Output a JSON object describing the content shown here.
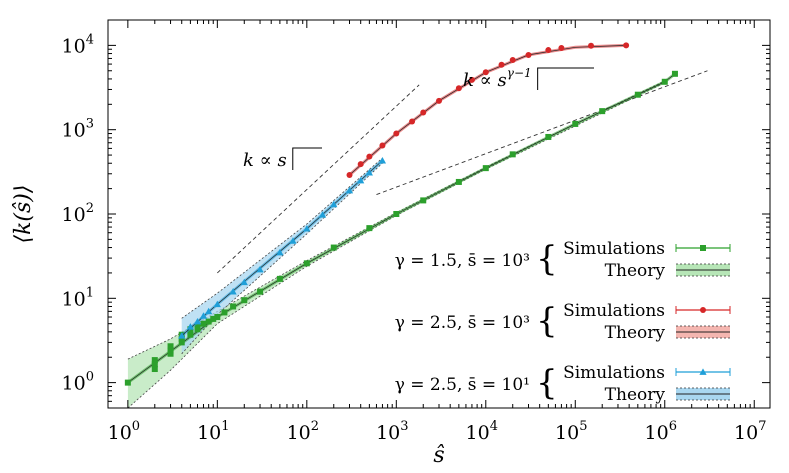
{
  "chart_data": {
    "type": "scatter",
    "title": "",
    "xlabel": "ŝ",
    "ylabel": "⟨k(ŝ)⟩",
    "x_scale": "log",
    "y_scale": "log",
    "xlim": [
      0.6,
      15000000
    ],
    "ylim": [
      0.5,
      20000
    ],
    "x_ticks": [
      {
        "value": 1,
        "base": "10",
        "exp": "0"
      },
      {
        "value": 10,
        "base": "10",
        "exp": "1"
      },
      {
        "value": 100,
        "base": "10",
        "exp": "2"
      },
      {
        "value": 1000,
        "base": "10",
        "exp": "3"
      },
      {
        "value": 10000,
        "base": "10",
        "exp": "4"
      },
      {
        "value": 100000,
        "base": "10",
        "exp": "5"
      },
      {
        "value": 1000000,
        "base": "10",
        "exp": "6"
      },
      {
        "value": 10000000,
        "base": "10",
        "exp": "7"
      }
    ],
    "y_ticks": [
      {
        "value": 1,
        "base": "10",
        "exp": "0"
      },
      {
        "value": 10,
        "base": "10",
        "exp": "1"
      },
      {
        "value": 100,
        "base": "10",
        "exp": "2"
      },
      {
        "value": 1000,
        "base": "10",
        "exp": "3"
      },
      {
        "value": 10000,
        "base": "10",
        "exp": "4"
      }
    ],
    "grid": false,
    "legend_position": "right",
    "annotations": [
      {
        "id": "annotation-linear",
        "text": "k ∝ s",
        "base": "k ∝ s",
        "sup": "",
        "x": [
          10,
          1800
        ],
        "y": [
          20,
          3400
        ]
      },
      {
        "id": "annotation-power",
        "text": "k ∝ s^(γ−1)",
        "base": "k ∝ s",
        "sup": "γ−1",
        "x": [
          600,
          3000000
        ],
        "y": [
          170,
          5000
        ]
      }
    ],
    "series": [
      {
        "id": "green",
        "color": "#2ca02c",
        "band_color": "#b7e6b7",
        "marker": "square",
        "group_label": "γ = 1.5, s̄ = 10³",
        "sim_label": "Simulations",
        "theory_label": "Theory",
        "points": [
          [
            1,
            1.0
          ],
          [
            2,
            1.45
          ],
          [
            2,
            1.65
          ],
          [
            2,
            1.85
          ],
          [
            3,
            2.2
          ],
          [
            3,
            2.4
          ],
          [
            3,
            2.7
          ],
          [
            4,
            3.0
          ],
          [
            4,
            3.3
          ],
          [
            4,
            3.7
          ],
          [
            5,
            3.7
          ],
          [
            5,
            4.0
          ],
          [
            5,
            4.3
          ],
          [
            6,
            4.3
          ],
          [
            6,
            4.6
          ],
          [
            7,
            5.0
          ],
          [
            8,
            5.3
          ],
          [
            9,
            5.7
          ],
          [
            10,
            6.0
          ],
          [
            12,
            6.8
          ],
          [
            15,
            8.0
          ],
          [
            20,
            9.5
          ],
          [
            30,
            12.0
          ],
          [
            50,
            17.0
          ],
          [
            100,
            26.0
          ],
          [
            200,
            40.0
          ],
          [
            500,
            68.0
          ],
          [
            1000,
            100.0
          ],
          [
            2000,
            145.0
          ],
          [
            5000,
            240.0
          ],
          [
            10000,
            350.0
          ],
          [
            20000,
            510.0
          ],
          [
            50000,
            820.0
          ],
          [
            100000,
            1170.0
          ],
          [
            200000,
            1660.0
          ],
          [
            500000,
            2600.0
          ],
          [
            1000000,
            3700.0
          ],
          [
            1300000,
            4600.0
          ]
        ],
        "theory": [
          [
            1,
            1.0
          ],
          [
            10,
            6.0
          ],
          [
            100,
            26.0
          ],
          [
            1000,
            100.0
          ],
          [
            10000,
            350.0
          ],
          [
            100000,
            1170.0
          ],
          [
            1000000,
            3700.0
          ],
          [
            1300000,
            4600.0
          ]
        ],
        "band_upper": [
          [
            1,
            1.9
          ],
          [
            3,
            3.3
          ],
          [
            10,
            7.0
          ],
          [
            100,
            28.0
          ],
          [
            1000,
            104.0
          ],
          [
            10000,
            360.0
          ],
          [
            1000000,
            3800.0
          ]
        ],
        "band_lower": [
          [
            1,
            0.5
          ],
          [
            3,
            1.4
          ],
          [
            10,
            5.0
          ],
          [
            100,
            24.0
          ],
          [
            1000,
            96.0
          ],
          [
            10000,
            340.0
          ],
          [
            1000000,
            3600.0
          ]
        ]
      },
      {
        "id": "red",
        "color": "#d62728",
        "band_color": "#f4b6b0",
        "marker": "circle",
        "group_label": "γ = 2.5, s̄ = 10³",
        "sim_label": "Simulations",
        "theory_label": "Theory",
        "points": [
          [
            300,
            290
          ],
          [
            400,
            390
          ],
          [
            500,
            480
          ],
          [
            700,
            650
          ],
          [
            1000,
            900
          ],
          [
            1500,
            1250
          ],
          [
            2000,
            1600
          ],
          [
            3000,
            2200
          ],
          [
            5000,
            3100
          ],
          [
            7000,
            3900
          ],
          [
            10000,
            4800
          ],
          [
            15000,
            5900
          ],
          [
            20000,
            6700
          ],
          [
            30000,
            7700
          ],
          [
            50000,
            8800
          ],
          [
            70000,
            9300
          ],
          [
            150000,
            9900
          ],
          [
            370000,
            10000
          ]
        ],
        "theory": [
          [
            300,
            290
          ],
          [
            1000,
            900
          ],
          [
            3000,
            2200
          ],
          [
            10000,
            4800
          ],
          [
            30000,
            7700
          ],
          [
            100000,
            9500
          ],
          [
            370000,
            10000
          ]
        ]
      },
      {
        "id": "blue",
        "color": "#1f9fd8",
        "band_color": "#a9d7f0",
        "marker": "triangle",
        "group_label": "γ = 2.5, s̄ = 10¹",
        "sim_label": "Simulations",
        "theory_label": "Theory",
        "points": [
          [
            4,
            3.6
          ],
          [
            5,
            4.6
          ],
          [
            6,
            5.3
          ],
          [
            7,
            6.2
          ],
          [
            8,
            7.0
          ],
          [
            10,
            8.5
          ],
          [
            15,
            12.0
          ],
          [
            20,
            15.5
          ],
          [
            30,
            22.0
          ],
          [
            50,
            35.0
          ],
          [
            70,
            48.0
          ],
          [
            100,
            67.0
          ],
          [
            150,
            98.0
          ],
          [
            200,
            130.0
          ],
          [
            300,
            190.0
          ],
          [
            400,
            250.0
          ],
          [
            500,
            310.0
          ],
          [
            700,
            430.0
          ]
        ],
        "theory": [
          [
            4,
            3.6
          ],
          [
            10,
            8.5
          ],
          [
            100,
            67.0
          ],
          [
            700,
            430.0
          ]
        ],
        "band_upper": [
          [
            4,
            5.8
          ],
          [
            10,
            11.5
          ],
          [
            100,
            76.0
          ],
          [
            700,
            460.0
          ]
        ],
        "band_lower": [
          [
            4,
            2.2
          ],
          [
            10,
            6.4
          ],
          [
            100,
            58.0
          ],
          [
            700,
            400.0
          ]
        ]
      }
    ]
  }
}
